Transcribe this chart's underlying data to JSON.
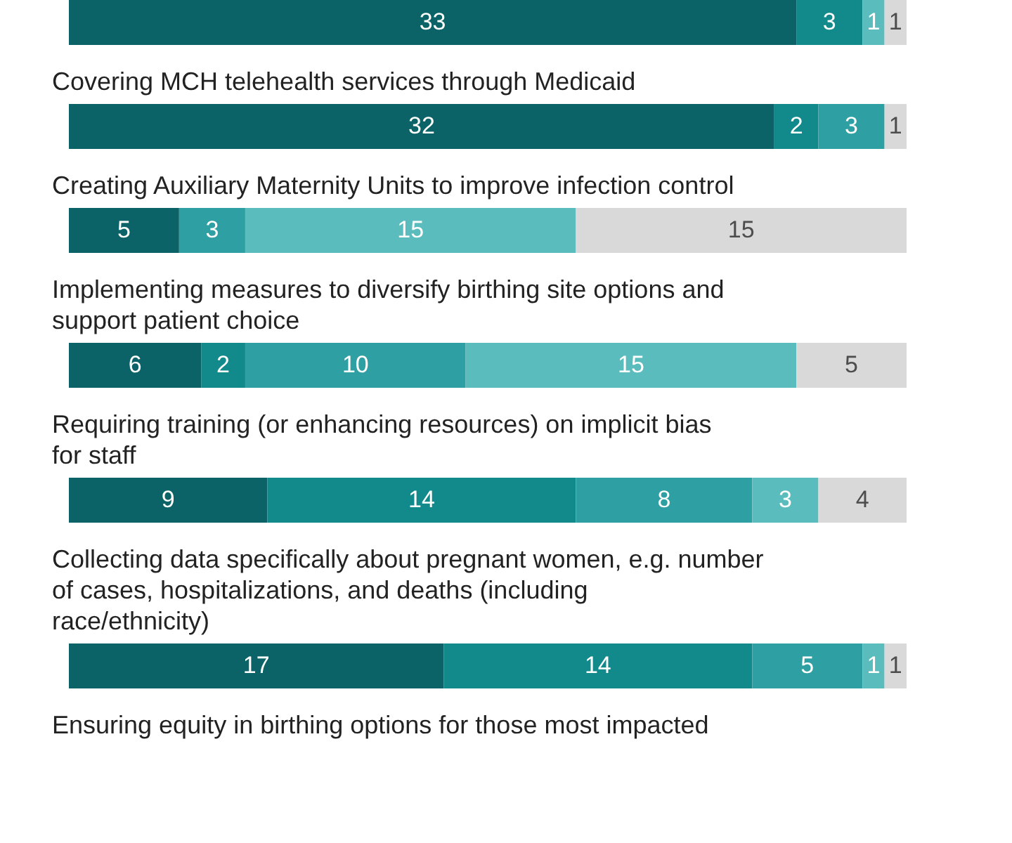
{
  "chart_data": {
    "type": "bar",
    "orientation": "horizontal",
    "stacked": true,
    "data_labels": true,
    "legend": false,
    "categories": [
      null,
      "Covering MCH telehealth services through Medicaid",
      "Creating Auxiliary Maternity Units to improve infection control",
      "Implementing measures to diversify birthing site options and support patient choice",
      "Requiring training (or enhancing resources) on implicit bias for staff",
      "Collecting data specifically about pregnant women, e.g. number of cases, hospitalizations, and deaths (including race/ethnicity)",
      "Ensuring equity in birthing options for those most impacted"
    ],
    "series": [
      {
        "color": "#0b6367",
        "values": [
          33,
          32,
          5,
          6,
          9,
          17,
          null
        ]
      },
      {
        "color": "#128a8c",
        "values": [
          3,
          2,
          null,
          2,
          14,
          14,
          null
        ]
      },
      {
        "color": "#2e9fa2",
        "values": [
          null,
          3,
          3,
          10,
          8,
          5,
          null
        ]
      },
      {
        "color": "#5bbcbd",
        "values": [
          1,
          null,
          15,
          15,
          3,
          1,
          null
        ]
      },
      {
        "color": "#d9d9d9",
        "values": [
          1,
          1,
          15,
          5,
          4,
          1,
          null
        ]
      }
    ]
  }
}
